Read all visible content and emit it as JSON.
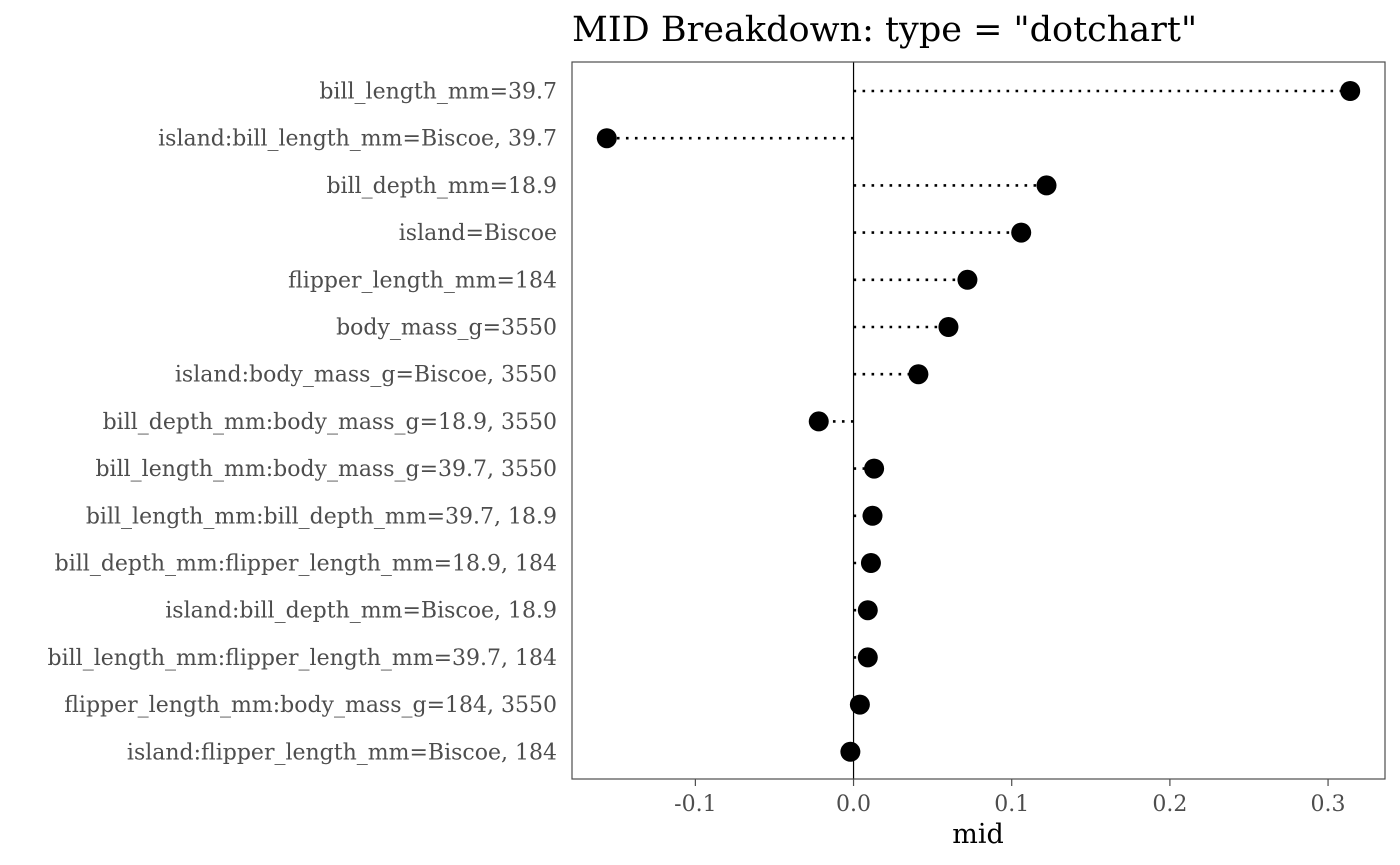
{
  "chart_data": {
    "type": "dotchart",
    "title": "MID Breakdown: type = \"dotchart\"",
    "xlabel": "mid",
    "ylabel": "",
    "xlim": [
      -0.178,
      0.336
    ],
    "x_ticks": [
      -0.1,
      0.0,
      0.1,
      0.2,
      0.3
    ],
    "x_tick_labels": [
      "-0.1",
      "0.0",
      "0.1",
      "0.2",
      "0.3"
    ],
    "reference_line": 0,
    "grid": false,
    "legend": "none",
    "categories": [
      "bill_length_mm=39.7",
      "island:bill_length_mm=Biscoe, 39.7",
      "bill_depth_mm=18.9",
      "island=Biscoe",
      "flipper_length_mm=184",
      "body_mass_g=3550",
      "island:body_mass_g=Biscoe, 3550",
      "bill_depth_mm:body_mass_g=18.9, 3550",
      "bill_length_mm:body_mass_g=39.7, 3550",
      "bill_length_mm:bill_depth_mm=39.7, 18.9",
      "bill_depth_mm:flipper_length_mm=18.9, 184",
      "island:bill_depth_mm=Biscoe, 18.9",
      "bill_length_mm:flipper_length_mm=39.7, 184",
      "flipper_length_mm:body_mass_g=184, 3550",
      "island:flipper_length_mm=Biscoe, 184"
    ],
    "values": [
      0.314,
      -0.156,
      0.122,
      0.106,
      0.072,
      0.06,
      0.041,
      -0.022,
      0.013,
      0.012,
      0.011,
      0.009,
      0.009,
      0.004,
      -0.002
    ],
    "colors": {
      "point": "#000000",
      "segment": "#000000",
      "axis": "#4d4d4d",
      "panel_border": "#4d4d4d"
    }
  }
}
